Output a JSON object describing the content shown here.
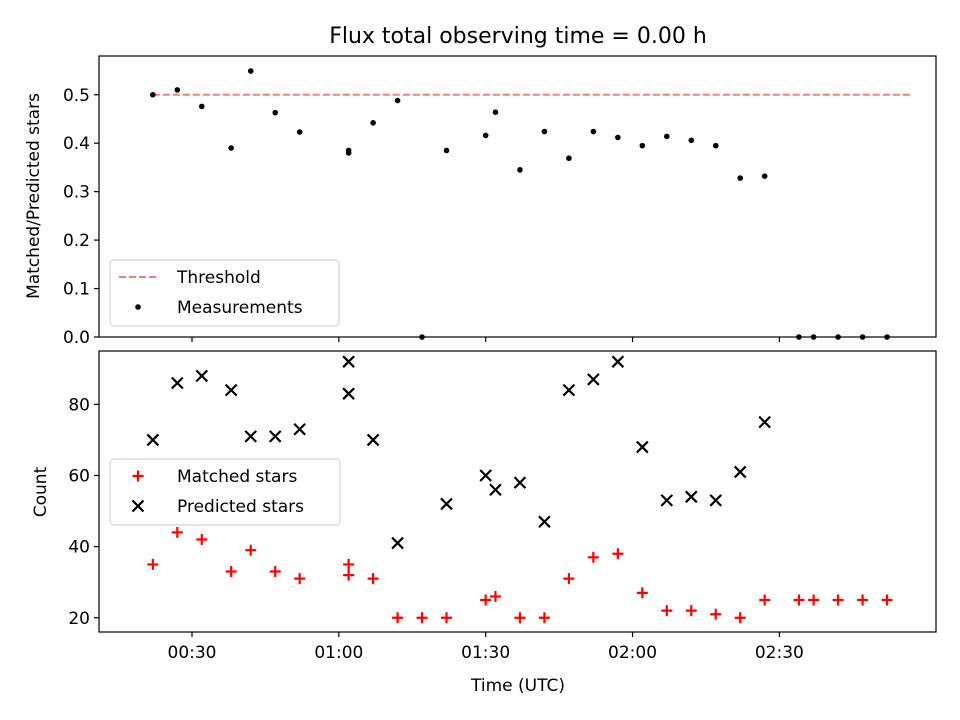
{
  "chart_data": [
    {
      "type": "scatter",
      "title": "Flux total observing time = 0.00 h",
      "xlabel": "",
      "ylabel": "Matched/Predicted stars",
      "x_unit": "time (UTC)",
      "xlim": [
        "00:11",
        "03:02"
      ],
      "ylim": [
        0,
        0.58
      ],
      "y_ticks": [
        "0.0",
        "0.1",
        "0.2",
        "0.3",
        "0.4",
        "0.5"
      ],
      "x_tick_labels_shown": false,
      "grid": false,
      "legend_position": "lower-left",
      "series": [
        {
          "name": "Threshold",
          "style": "dashed-line",
          "color": "#f08080",
          "points": [
            [
              "00:22",
              0.5
            ],
            [
              "02:57",
              0.5
            ]
          ]
        },
        {
          "name": "Measurements",
          "style": "dot",
          "color": "#000000",
          "points": [
            [
              "00:22",
              0.5
            ],
            [
              "00:27",
              0.51
            ],
            [
              "00:32",
              0.476
            ],
            [
              "00:38",
              0.39
            ],
            [
              "00:42",
              0.549
            ],
            [
              "00:47",
              0.463
            ],
            [
              "00:52",
              0.423
            ],
            [
              "01:02",
              0.385
            ],
            [
              "01:02",
              0.38
            ],
            [
              "01:07",
              0.442
            ],
            [
              "01:12",
              0.488
            ],
            [
              "01:17",
              0.0
            ],
            [
              "01:22",
              0.385
            ],
            [
              "01:30",
              0.416
            ],
            [
              "01:32",
              0.464
            ],
            [
              "01:37",
              0.345
            ],
            [
              "01:42",
              0.424
            ],
            [
              "01:47",
              0.369
            ],
            [
              "01:52",
              0.424
            ],
            [
              "01:57",
              0.412
            ],
            [
              "02:02",
              0.395
            ],
            [
              "02:07",
              0.414
            ],
            [
              "02:12",
              0.406
            ],
            [
              "02:17",
              0.395
            ],
            [
              "02:22",
              0.328
            ],
            [
              "02:27",
              0.332
            ],
            [
              "02:34",
              0.0
            ],
            [
              "02:37",
              0.0
            ],
            [
              "02:42",
              0.0
            ],
            [
              "02:47",
              0.0
            ],
            [
              "02:52",
              0.0
            ]
          ]
        }
      ]
    },
    {
      "type": "scatter",
      "title": "",
      "xlabel": "Time (UTC)",
      "ylabel": "Count",
      "x_unit": "time (UTC)",
      "xlim": [
        "00:11",
        "03:02"
      ],
      "ylim": [
        16,
        95
      ],
      "x_ticks": [
        "00:30",
        "01:00",
        "01:30",
        "02:00",
        "02:30"
      ],
      "y_ticks": [
        "20",
        "40",
        "60",
        "80"
      ],
      "grid": false,
      "legend_position": "center-left",
      "series": [
        {
          "name": "Matched stars",
          "style": "plus",
          "color": "#ff0000",
          "points": [
            [
              "00:22",
              35
            ],
            [
              "00:27",
              44
            ],
            [
              "00:32",
              42
            ],
            [
              "00:38",
              33
            ],
            [
              "00:42",
              39
            ],
            [
              "00:47",
              33
            ],
            [
              "00:52",
              31
            ],
            [
              "01:02",
              32
            ],
            [
              "01:02",
              35
            ],
            [
              "01:07",
              31
            ],
            [
              "01:12",
              20
            ],
            [
              "01:17",
              20
            ],
            [
              "01:22",
              20
            ],
            [
              "01:30",
              25
            ],
            [
              "01:32",
              26
            ],
            [
              "01:37",
              20
            ],
            [
              "01:42",
              20
            ],
            [
              "01:47",
              31
            ],
            [
              "01:52",
              37
            ],
            [
              "01:57",
              38
            ],
            [
              "02:02",
              27
            ],
            [
              "02:07",
              22
            ],
            [
              "02:12",
              22
            ],
            [
              "02:17",
              21
            ],
            [
              "02:22",
              20
            ],
            [
              "02:27",
              25
            ],
            [
              "02:34",
              25
            ],
            [
              "02:37",
              25
            ],
            [
              "02:42",
              25
            ],
            [
              "02:47",
              25
            ],
            [
              "02:52",
              25
            ]
          ]
        },
        {
          "name": "Predicted stars",
          "style": "x",
          "color": "#000000",
          "points": [
            [
              "00:22",
              70
            ],
            [
              "00:27",
              86
            ],
            [
              "00:32",
              88
            ],
            [
              "00:38",
              84
            ],
            [
              "00:42",
              71
            ],
            [
              "00:47",
              71
            ],
            [
              "00:52",
              73
            ],
            [
              "01:02",
              83
            ],
            [
              "01:02",
              92
            ],
            [
              "01:07",
              70
            ],
            [
              "01:12",
              41
            ],
            [
              "01:22",
              52
            ],
            [
              "01:30",
              60
            ],
            [
              "01:32",
              56
            ],
            [
              "01:37",
              58
            ],
            [
              "01:42",
              47
            ],
            [
              "01:47",
              84
            ],
            [
              "01:52",
              87
            ],
            [
              "01:57",
              92
            ],
            [
              "02:02",
              68
            ],
            [
              "02:07",
              53
            ],
            [
              "02:12",
              54
            ],
            [
              "02:17",
              53
            ],
            [
              "02:22",
              61
            ],
            [
              "02:27",
              75
            ]
          ]
        }
      ]
    }
  ]
}
